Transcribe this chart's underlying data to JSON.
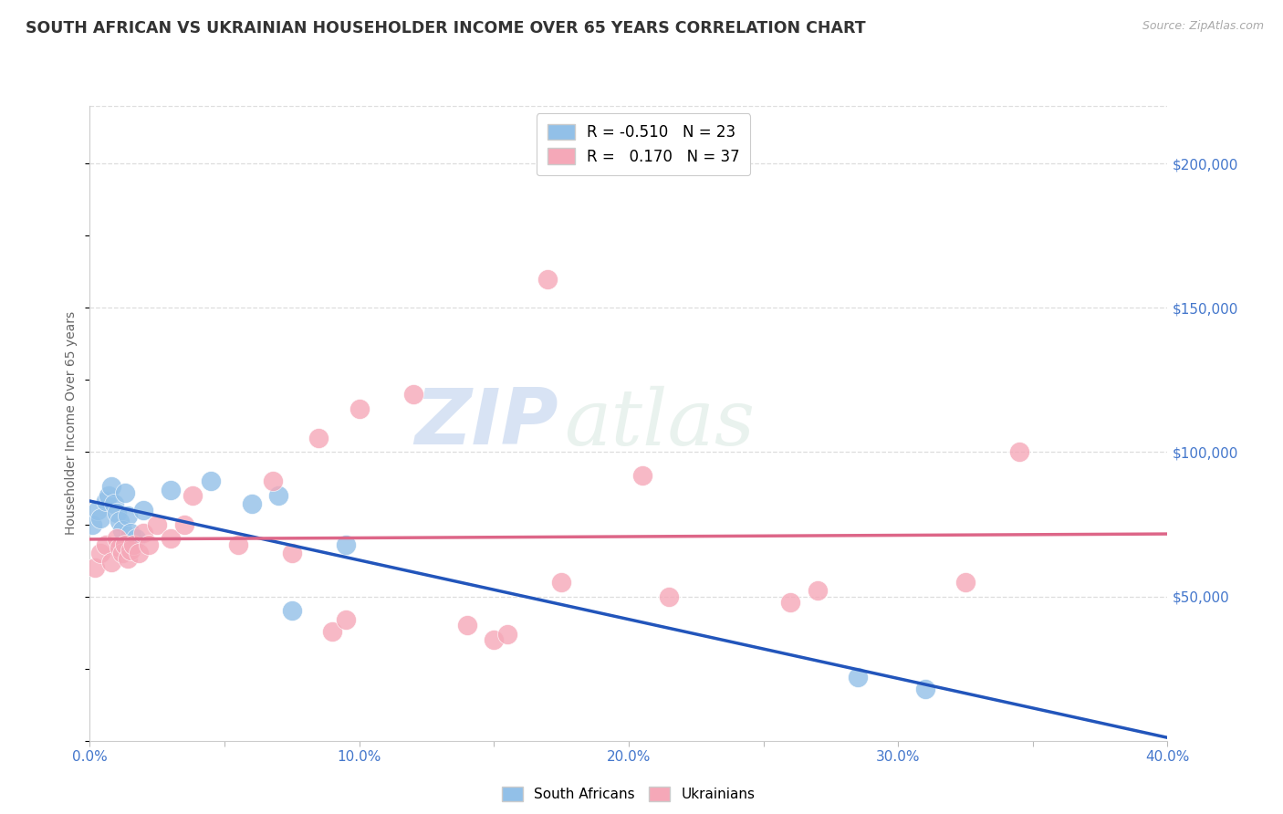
{
  "title": "SOUTH AFRICAN VS UKRAINIAN HOUSEHOLDER INCOME OVER 65 YEARS CORRELATION CHART",
  "source": "Source: ZipAtlas.com",
  "ylabel": "Householder Income Over 65 years",
  "watermark_zip": "ZIP",
  "watermark_atlas": "atlas",
  "xlim": [
    0.0,
    0.4
  ],
  "ylim": [
    0,
    220000
  ],
  "xticks": [
    0.0,
    0.05,
    0.1,
    0.15,
    0.2,
    0.25,
    0.3,
    0.35,
    0.4
  ],
  "xtick_labels": [
    "0.0%",
    "",
    "10.0%",
    "",
    "20.0%",
    "",
    "30.0%",
    "",
    "40.0%"
  ],
  "yticks_right": [
    50000,
    100000,
    150000,
    200000
  ],
  "ytick_labels_right": [
    "$50,000",
    "$100,000",
    "$150,000",
    "$200,000"
  ],
  "south_african_color": "#92c0e8",
  "ukrainian_color": "#f5a8b8",
  "trend_blue": "#2255bb",
  "trend_pink": "#dd6688",
  "legend_R_sa": "-0.510",
  "legend_N_sa": "23",
  "legend_R_uk": "0.170",
  "legend_N_uk": "37",
  "south_african_x": [
    0.001,
    0.003,
    0.004,
    0.006,
    0.007,
    0.008,
    0.009,
    0.01,
    0.011,
    0.012,
    0.013,
    0.014,
    0.015,
    0.017,
    0.02,
    0.03,
    0.045,
    0.06,
    0.07,
    0.075,
    0.095,
    0.285,
    0.31
  ],
  "south_african_y": [
    75000,
    80000,
    77000,
    83000,
    85000,
    88000,
    82000,
    79000,
    76000,
    73000,
    86000,
    78000,
    72000,
    70000,
    80000,
    87000,
    90000,
    82000,
    85000,
    45000,
    68000,
    22000,
    18000
  ],
  "ukrainian_x": [
    0.002,
    0.004,
    0.006,
    0.008,
    0.01,
    0.011,
    0.012,
    0.013,
    0.014,
    0.015,
    0.016,
    0.018,
    0.02,
    0.022,
    0.025,
    0.03,
    0.035,
    0.038,
    0.055,
    0.068,
    0.075,
    0.085,
    0.09,
    0.095,
    0.1,
    0.12,
    0.14,
    0.15,
    0.155,
    0.17,
    0.175,
    0.205,
    0.215,
    0.26,
    0.27,
    0.325,
    0.345
  ],
  "ukrainian_y": [
    60000,
    65000,
    68000,
    62000,
    70000,
    67000,
    65000,
    68000,
    63000,
    66000,
    68000,
    65000,
    72000,
    68000,
    75000,
    70000,
    75000,
    85000,
    68000,
    90000,
    65000,
    105000,
    38000,
    42000,
    115000,
    120000,
    40000,
    35000,
    37000,
    160000,
    55000,
    92000,
    50000,
    48000,
    52000,
    55000,
    100000
  ],
  "background_color": "#ffffff",
  "grid_color": "#dddddd"
}
